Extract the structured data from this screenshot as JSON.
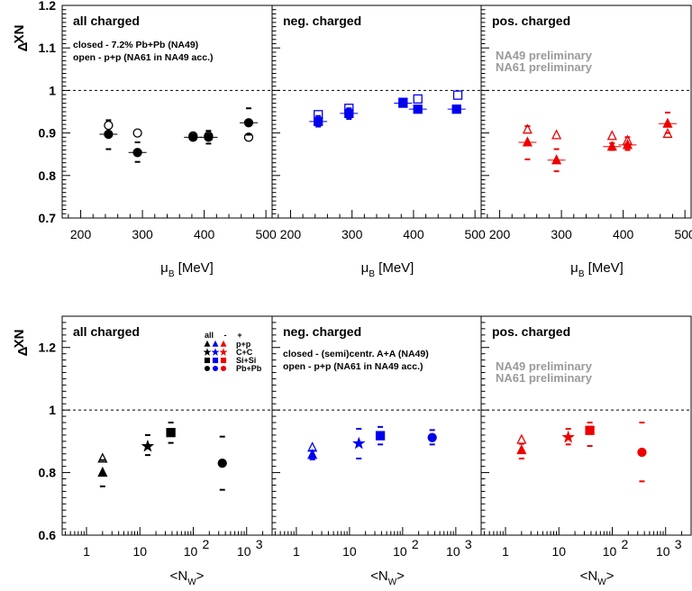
{
  "colors": {
    "all": "#000000",
    "neg": "#0000ee",
    "pos": "#ee0000",
    "prelim": "#9a9a9a"
  },
  "chart_data": [
    {
      "type": "scatter",
      "ylabel_main": "Δ",
      "ylabel_sup": "XN",
      "xlabel": "μ",
      "xlabel_sub": "B",
      "xlabel_unit": "[MeV]",
      "xlim": [
        170,
        510
      ],
      "ylim": [
        0.7,
        1.2
      ],
      "xticks": [
        "200",
        "300",
        "400",
        "500"
      ],
      "yticks": [
        "0.7",
        "0.8",
        "0.9",
        "1",
        "1.1",
        "1.2"
      ],
      "reference_line": 1,
      "panels": [
        {
          "title": "all charged",
          "color": "all",
          "notes": [
            "closed - 7.2% Pb+Pb (NA49)",
            "open - p+p (NA61 in NA49 acc.)"
          ],
          "closed": [
            {
              "x": 245,
              "y": 0.897,
              "marker": "circle",
              "err_lo": 0.862,
              "err_hi": 0.93
            },
            {
              "x": 292,
              "y": 0.854,
              "marker": "circle",
              "err_lo": 0.832,
              "err_hi": 0.878
            },
            {
              "x": 382,
              "y": 0.89,
              "marker": "circle",
              "err_lo": 0.885,
              "err_hi": 0.895
            },
            {
              "x": 407,
              "y": 0.89,
              "marker": "circle",
              "err_lo": 0.875,
              "err_hi": 0.905
            },
            {
              "x": 472,
              "y": 0.924,
              "marker": "circle",
              "err_lo": 0.896,
              "err_hi": 0.958
            }
          ],
          "open": [
            {
              "x": 245,
              "y": 0.918,
              "marker": "circle"
            },
            {
              "x": 292,
              "y": 0.9,
              "marker": "circle"
            },
            {
              "x": 382,
              "y": 0.893,
              "marker": "circle"
            },
            {
              "x": 407,
              "y": 0.893,
              "marker": "circle"
            },
            {
              "x": 472,
              "y": 0.89,
              "marker": "circle"
            }
          ]
        },
        {
          "title": "neg. charged",
          "color": "neg",
          "notes": [],
          "closed": [
            {
              "x": 245,
              "y": 0.927,
              "marker": "square",
              "err_lo": 0.915,
              "err_hi": 0.94
            },
            {
              "x": 295,
              "y": 0.946,
              "marker": "square",
              "err_lo": 0.933,
              "err_hi": 0.958
            },
            {
              "x": 383,
              "y": 0.97,
              "marker": "square",
              "err_lo": 0.962,
              "err_hi": 0.978
            },
            {
              "x": 407,
              "y": 0.956,
              "marker": "square",
              "err_lo": 0.948,
              "err_hi": 0.964
            },
            {
              "x": 470,
              "y": 0.956,
              "marker": "square",
              "err_lo": 0.948,
              "err_hi": 0.964
            }
          ],
          "open": [
            {
              "x": 245,
              "y": 0.943,
              "marker": "square"
            },
            {
              "x": 295,
              "y": 0.958,
              "marker": "square"
            },
            {
              "x": 383,
              "y": 0.972,
              "marker": "square"
            },
            {
              "x": 407,
              "y": 0.98,
              "marker": "square"
            },
            {
              "x": 472,
              "y": 0.989,
              "marker": "square"
            }
          ]
        },
        {
          "title": "pos. charged",
          "color": "pos",
          "notes": [
            "NA49 preliminary",
            "NA61 preliminary"
          ],
          "closed": [
            {
              "x": 245,
              "y": 0.878,
              "marker": "triangle",
              "err_lo": 0.838,
              "err_hi": 0.916
            },
            {
              "x": 292,
              "y": 0.836,
              "marker": "triangle",
              "err_lo": 0.81,
              "err_hi": 0.862
            },
            {
              "x": 382,
              "y": 0.868,
              "marker": "triangle",
              "err_lo": 0.86,
              "err_hi": 0.876
            },
            {
              "x": 407,
              "y": 0.872,
              "marker": "triangle",
              "err_lo": 0.86,
              "err_hi": 0.89
            },
            {
              "x": 472,
              "y": 0.922,
              "marker": "triangle",
              "err_lo": 0.9,
              "err_hi": 0.948
            }
          ],
          "open": [
            {
              "x": 245,
              "y": 0.908,
              "marker": "triangle"
            },
            {
              "x": 292,
              "y": 0.895,
              "marker": "triangle"
            },
            {
              "x": 382,
              "y": 0.893,
              "marker": "triangle"
            },
            {
              "x": 407,
              "y": 0.882,
              "marker": "triangle"
            },
            {
              "x": 472,
              "y": 0.898,
              "marker": "triangle"
            }
          ]
        }
      ]
    },
    {
      "type": "scatter",
      "log_x": true,
      "ylabel_main": "Δ",
      "ylabel_sup": "XN",
      "xlabel": "<N",
      "xlabel_sub": "W",
      "xlabel_unit": ">",
      "xlim": [
        0.35,
        3000
      ],
      "ylim": [
        0.6,
        1.3
      ],
      "xticks": [
        "1",
        "10",
        "10",
        "10"
      ],
      "xtick_exponents": [
        "",
        "",
        "2",
        "3"
      ],
      "yticks": [
        "0.6",
        "0.8",
        "1",
        "1.2"
      ],
      "reference_line": 1,
      "legend": {
        "header": [
          "all",
          "-",
          "+"
        ],
        "rows": [
          "p+p",
          "C+C",
          "Si+Si",
          "Pb+Pb"
        ]
      },
      "panels": [
        {
          "title": "all charged",
          "color": "all",
          "notes": [],
          "closed": [
            {
              "x": 2,
              "y": 0.8,
              "marker": "triangle",
              "err_lo": 0.756,
              "err_hi": 0.84
            },
            {
              "x": 14,
              "y": 0.884,
              "marker": "star",
              "err_lo": 0.856,
              "err_hi": 0.92
            },
            {
              "x": 38,
              "y": 0.928,
              "marker": "square",
              "err_lo": 0.895,
              "err_hi": 0.96
            },
            {
              "x": 350,
              "y": 0.83,
              "marker": "circle",
              "err_lo": 0.745,
              "err_hi": 0.915
            }
          ],
          "open": [
            {
              "x": 2,
              "y": 0.845,
              "marker": "triangle"
            }
          ]
        },
        {
          "title": "neg. charged",
          "color": "neg",
          "notes": [
            "closed - (semi)centr. A+A (NA49)",
            "open - p+p (NA61 in NA49 acc.)"
          ],
          "closed": [
            {
              "x": 2,
              "y": 0.857,
              "marker": "triangle",
              "err_lo": 0.842,
              "err_hi": 0.87
            },
            {
              "x": 15,
              "y": 0.893,
              "marker": "star",
              "err_lo": 0.845,
              "err_hi": 0.94
            },
            {
              "x": 38,
              "y": 0.918,
              "marker": "square",
              "err_lo": 0.89,
              "err_hi": 0.946
            },
            {
              "x": 360,
              "y": 0.912,
              "marker": "circle",
              "err_lo": 0.89,
              "err_hi": 0.936
            }
          ],
          "open": [
            {
              "x": 2,
              "y": 0.88,
              "marker": "triangle"
            }
          ]
        },
        {
          "title": "pos. charged",
          "color": "pos",
          "notes": [
            "NA49 preliminary",
            "NA61 preliminary"
          ],
          "closed": [
            {
              "x": 2,
              "y": 0.872,
              "marker": "triangle",
              "err_lo": 0.845,
              "err_hi": 0.892
            },
            {
              "x": 15,
              "y": 0.913,
              "marker": "star",
              "err_lo": 0.89,
              "err_hi": 0.94
            },
            {
              "x": 38,
              "y": 0.935,
              "marker": "square",
              "err_lo": 0.885,
              "err_hi": 0.96
            },
            {
              "x": 360,
              "y": 0.865,
              "marker": "circle",
              "err_lo": 0.772,
              "err_hi": 0.96
            }
          ],
          "open": [
            {
              "x": 2,
              "y": 0.905,
              "marker": "triangle"
            }
          ]
        }
      ]
    }
  ]
}
